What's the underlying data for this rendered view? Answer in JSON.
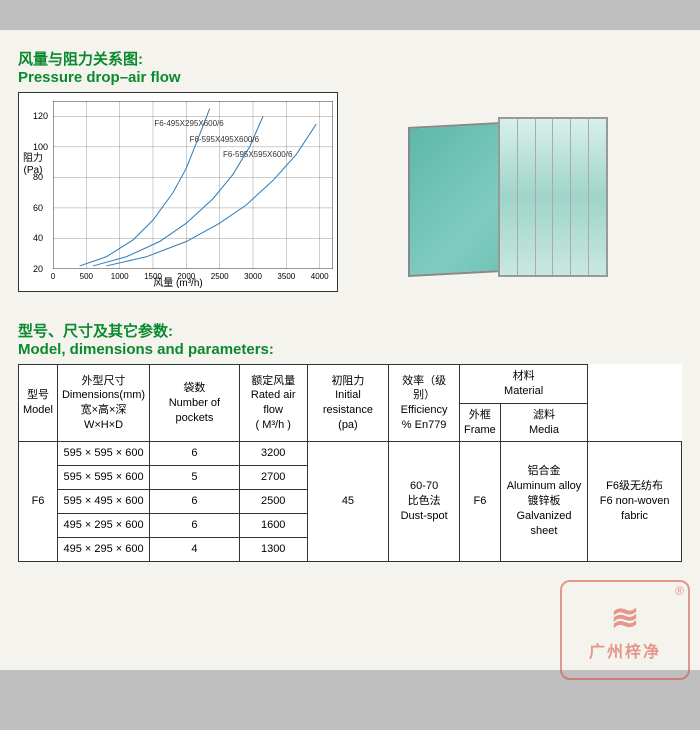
{
  "section1": {
    "title_cn": "风量与阻力关系图:",
    "title_en": "Pressure drop–air flow",
    "chart": {
      "type": "line",
      "ylabel_cn": "阻力",
      "ylabel_unit": "(Pa)",
      "xlabel_cn": "风量",
      "xlabel_unit": "(m³/h)",
      "ylim": [
        20,
        130
      ],
      "yticks": [
        20,
        40,
        60,
        80,
        100,
        120
      ],
      "xlim": [
        0,
        4200
      ],
      "xticks": [
        0,
        500,
        1000,
        1500,
        2000,
        2500,
        3000,
        3500,
        4000
      ],
      "grid_color": "#999999",
      "line_color": "#2a7bb8",
      "line_width": 1,
      "background_color": "#ffffff",
      "label_fontsize": 9,
      "series": [
        {
          "name": "F6-495X295X600/6",
          "label_x": 1520,
          "label_y": 118,
          "points": [
            [
              400,
              22
            ],
            [
              800,
              28
            ],
            [
              1200,
              39
            ],
            [
              1500,
              52
            ],
            [
              1800,
              70
            ],
            [
              2000,
              86
            ],
            [
              2200,
              108
            ],
            [
              2350,
              125
            ]
          ]
        },
        {
          "name": "F6-595X495X600/6",
          "label_x": 2050,
          "label_y": 108,
          "points": [
            [
              600,
              22
            ],
            [
              1100,
              28
            ],
            [
              1600,
              38
            ],
            [
              2000,
              50
            ],
            [
              2400,
              66
            ],
            [
              2700,
              82
            ],
            [
              2950,
              100
            ],
            [
              3150,
              120
            ]
          ]
        },
        {
          "name": "F6-595X595X600/6",
          "label_x": 2550,
          "label_y": 98,
          "points": [
            [
              800,
              22
            ],
            [
              1400,
              28
            ],
            [
              2000,
              38
            ],
            [
              2500,
              50
            ],
            [
              2900,
              62
            ],
            [
              3300,
              78
            ],
            [
              3650,
              95
            ],
            [
              3950,
              115
            ]
          ]
        }
      ]
    },
    "product": {
      "color_body": "#5db8a8",
      "color_pocket": "#9fd4c8",
      "frame_color": "#999999",
      "pocket_count": 6
    }
  },
  "section2": {
    "title_cn": "型号、尺寸及其它参数:",
    "title_en": "Model, dimensions and parameters:",
    "table": {
      "headers": {
        "model": {
          "cn": "型号",
          "en": "Model"
        },
        "dims": {
          "cn": "外型尺寸",
          "en": "Dimensions(mm)",
          "sub_cn": "宽×高×深",
          "sub_en": "W×H×D"
        },
        "pockets": {
          "cn": "袋数",
          "en": "Number of pockets"
        },
        "airflow": {
          "cn": "额定风量",
          "en": "Rated air flow",
          "unit": "( M³/h )"
        },
        "initres": {
          "cn": "初阻力",
          "en": "Initial resistance",
          "unit": "(pa)"
        },
        "eff": {
          "cn": "效率（级别）",
          "en": "Efficiency",
          "sub": "% En779"
        },
        "material": {
          "cn": "材料",
          "en": "Material"
        },
        "frame": {
          "cn": "外框",
          "en": "Frame"
        },
        "media": {
          "cn": "滤料",
          "en": "Media"
        }
      },
      "model_value": "F6",
      "rows": [
        {
          "dims": "595 × 595 × 600",
          "pockets": "6",
          "airflow": "3200"
        },
        {
          "dims": "595 × 595 × 600",
          "pockets": "5",
          "airflow": "2700"
        },
        {
          "dims": "595 × 495 × 600",
          "pockets": "6",
          "airflow": "2500"
        },
        {
          "dims": "495 × 295 × 600",
          "pockets": "6",
          "airflow": "1600"
        },
        {
          "dims": "495 × 295 × 600",
          "pockets": "4",
          "airflow": "1300"
        }
      ],
      "init_resistance": "45",
      "efficiency_value": "60-70",
      "efficiency_method_cn": "比色法",
      "efficiency_method_en": "Dust-spot",
      "efficiency_class": "F6",
      "frame_cn1": "铝合金",
      "frame_en1": "Aluminum alloy",
      "frame_cn2": "镀锌板",
      "frame_en2": "Galvanized sheet",
      "media_cn": "F6级无纺布",
      "media_en": "F6 non-woven fabric"
    }
  },
  "stamp": {
    "registered": "®",
    "text": "广州梓净"
  }
}
